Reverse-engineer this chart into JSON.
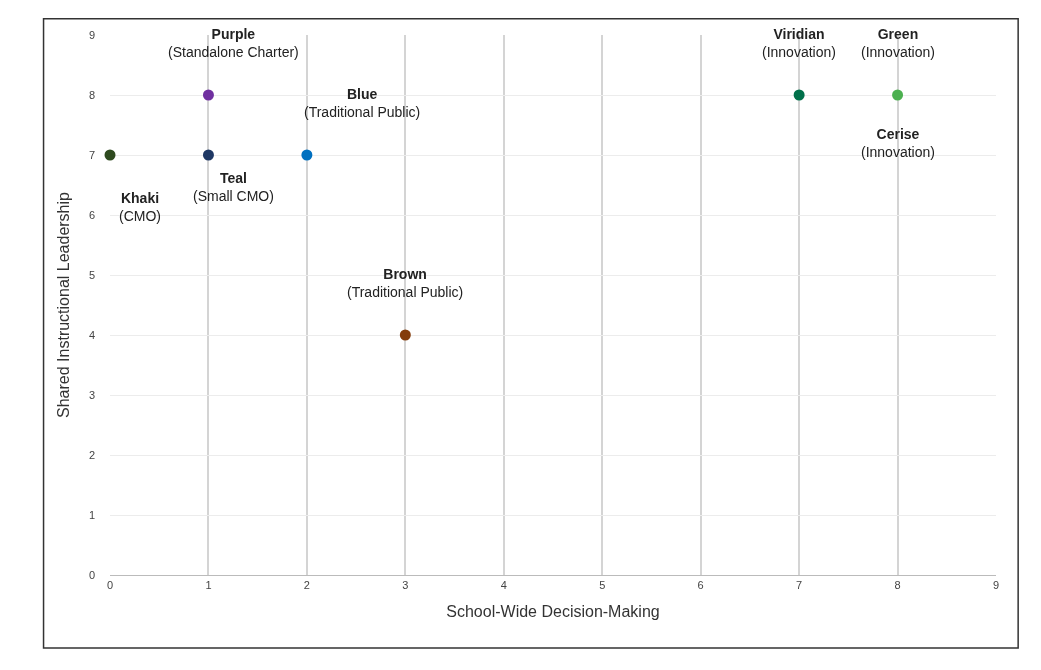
{
  "chart_data": {
    "type": "scatter",
    "xlabel": "School-Wide Decision-Making",
    "ylabel": "Shared Instructional Leadership",
    "x": [
      0,
      1,
      1,
      2,
      3,
      7,
      8
    ],
    "values": [
      7,
      7,
      8,
      7,
      4,
      8,
      8
    ],
    "colors": [
      "#2e4a1f",
      "#1f3864",
      "#7030a0",
      "#0070c0",
      "#843c0c",
      "#00704a",
      "#4cb050"
    ],
    "marker": "circle",
    "grid": true,
    "legend": false,
    "xlim": [
      0,
      9
    ],
    "ylim": [
      0,
      9
    ],
    "xticks": [
      0,
      1,
      2,
      3,
      4,
      5,
      6,
      7,
      8,
      9
    ],
    "yticks": [
      0,
      1,
      2,
      3,
      4,
      5,
      6,
      7,
      8,
      9
    ],
    "annotations": [
      {
        "text": "Khaki\n(CMO)",
        "x": 0,
        "y": 7
      },
      {
        "text": "Teal\n(Small CMO)",
        "x": 1,
        "y": 7
      },
      {
        "text": "Purple\n(Standalone Charter)",
        "x": 1,
        "y": 8
      },
      {
        "text": "Blue\n(Traditional Public)",
        "x": 2,
        "y": 7
      },
      {
        "text": "Brown\n(Traditional Public)",
        "x": 3,
        "y": 4
      },
      {
        "text": "Viridian\n(Innovation)",
        "x": 7,
        "y": 8
      },
      {
        "text": "Green\n(Innovation)",
        "x": 8,
        "y": 8
      },
      {
        "text": "Cerise\n(Innovation)",
        "x": 8,
        "y": 8
      }
    ]
  }
}
